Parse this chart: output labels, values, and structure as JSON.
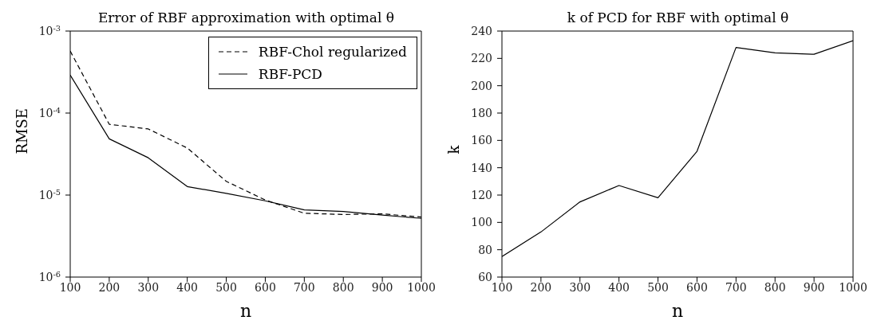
{
  "chart_data": [
    {
      "type": "line",
      "title": "Error of RBF approximation with optimal θ",
      "xlabel": "n",
      "ylabel": "RMSE",
      "x": [
        100,
        200,
        300,
        400,
        500,
        600,
        700,
        800,
        900,
        1000
      ],
      "series": [
        {
          "name": "RBF-Chol regularized",
          "color": "#000000",
          "line_style": "dashed",
          "values": [
            0.00057,
            7.3e-05,
            6.4e-05,
            3.75e-05,
            1.47e-05,
            8.7e-06,
            6e-06,
            5.8e-06,
            5.9e-06,
            5.4e-06
          ]
        },
        {
          "name": "RBF-PCD",
          "color": "#000000",
          "line_style": "solid",
          "values": [
            0.00029,
            4.85e-05,
            2.85e-05,
            1.27e-05,
            1.05e-05,
            8.5e-06,
            6.6e-06,
            6.3e-06,
            5.7e-06,
            5.2e-06
          ]
        }
      ],
      "log": "y",
      "xlim": [
        100,
        1000
      ],
      "xticks": [
        100,
        200,
        300,
        400,
        500,
        600,
        700,
        800,
        900,
        1000
      ],
      "ylim": [
        1e-06,
        0.001
      ],
      "yticks": [
        {
          "value": 1e-06,
          "label": "10$^{-6}$"
        },
        {
          "value": 1e-05,
          "label": "10$^{-5}$"
        },
        {
          "value": 0.0001,
          "label": "10$^{-4}$"
        },
        {
          "value": 0.001,
          "label": "10$^{-3}$"
        }
      ],
      "grid": false,
      "legend": "top right",
      "marker": "none"
    },
    {
      "type": "line",
      "title": "k of PCD for RBF with optimal θ",
      "xlabel": "n",
      "ylabel": "k",
      "x": [
        100,
        200,
        300,
        400,
        500,
        600,
        700,
        800,
        900,
        1000
      ],
      "series": [
        {
          "color": "#000000",
          "line_style": "solid",
          "values": [
            75,
            93,
            115,
            127,
            118,
            152,
            228,
            224,
            223,
            233
          ]
        }
      ],
      "xlim": [
        100,
        1000
      ],
      "xticks": [
        100,
        200,
        300,
        400,
        500,
        600,
        700,
        800,
        900,
        1000
      ],
      "ylim": [
        60,
        240
      ],
      "yticks": [
        60,
        80,
        100,
        120,
        140,
        160,
        180,
        200,
        220,
        240
      ],
      "grid": false,
      "legend": false,
      "marker": "none"
    }
  ]
}
